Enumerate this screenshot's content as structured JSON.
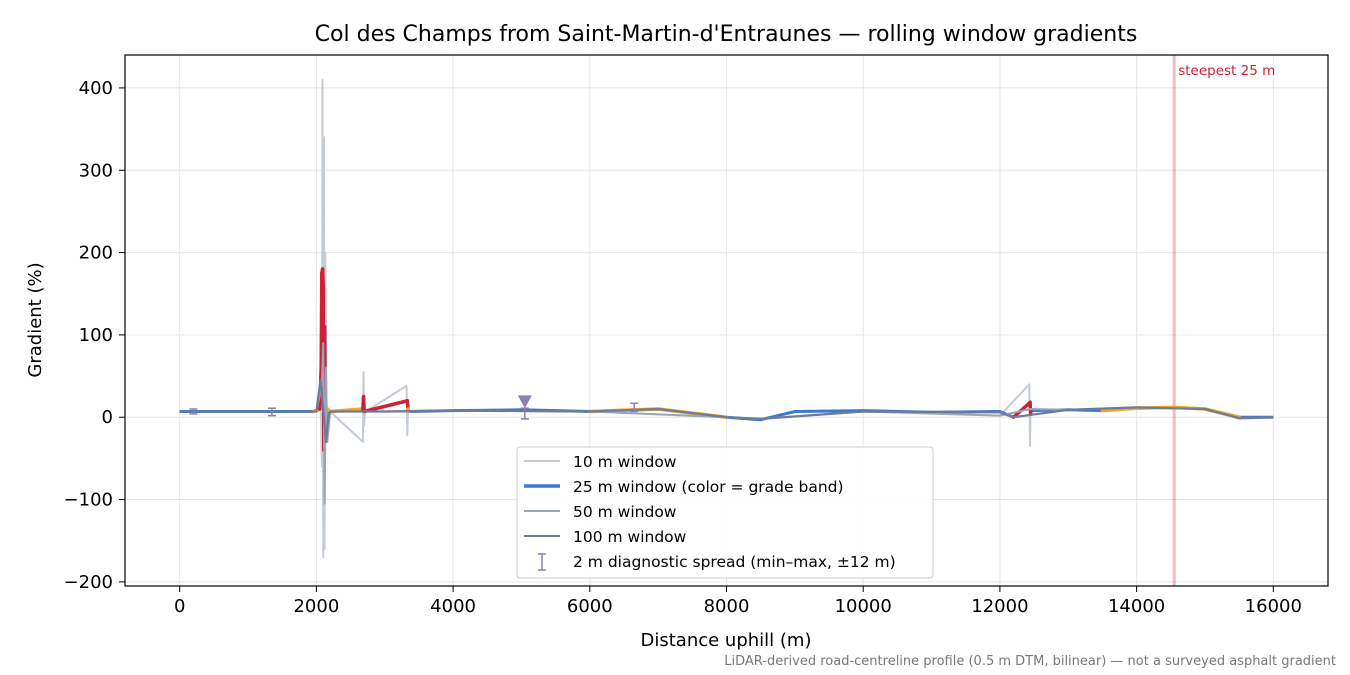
{
  "chart_data": {
    "type": "line",
    "title": "Col des Champs from Saint-Martin-d'Entraunes — rolling window gradients",
    "xlabel": "Distance uphill (m)",
    "ylabel": "Gradient (%)",
    "xlim": [
      -800,
      16800
    ],
    "ylim": [
      -205,
      440
    ],
    "xticks": [
      0,
      2000,
      4000,
      6000,
      8000,
      10000,
      12000,
      14000,
      16000
    ],
    "xtick_labels": [
      "0",
      "2000",
      "4000",
      "6000",
      "8000",
      "10000",
      "12000",
      "14000",
      "16000"
    ],
    "yticks": [
      -200,
      -100,
      0,
      100,
      200,
      300,
      400
    ],
    "ytick_labels": [
      "−200",
      "−100",
      "0",
      "100",
      "200",
      "300",
      "400"
    ],
    "grid": true,
    "legend_placement": "lower-center",
    "footnote": "LiDAR-derived road-centreline profile (0.5 m DTM, bilinear) — not a surveyed asphalt gradient",
    "annotations": [
      {
        "kind": "vertical-line",
        "x": 14550,
        "text": "steepest 25 m",
        "color": "#cc2233"
      },
      {
        "kind": "triangle-marker",
        "x": 5050,
        "y": 18,
        "color": "#8e7fae"
      }
    ],
    "series": [
      {
        "name": "10 m window",
        "color": "#c5ccd6",
        "x": [
          0,
          1000,
          1900,
          2040,
          2060,
          2080,
          2090,
          2100,
          2110,
          2120,
          2130,
          2150,
          2200,
          2680,
          2690,
          2700,
          2710,
          2720,
          3320,
          3330,
          3340,
          3350,
          4000,
          6000,
          8000,
          8500,
          10000,
          12000,
          12430,
          12440,
          12450,
          12460,
          13000,
          14000,
          15000,
          15500,
          16000
        ],
        "values": [
          7,
          7,
          7,
          8,
          45,
          -60,
          410,
          -170,
          340,
          -160,
          200,
          -20,
          7,
          -30,
          55,
          -10,
          5,
          7,
          38,
          -22,
          10,
          7,
          8,
          7,
          0,
          -2,
          7,
          2,
          40,
          -35,
          20,
          8,
          9,
          12,
          10,
          -2,
          0
        ]
      },
      {
        "name": "25 m window (color = grade band)",
        "color": "#3a78d8",
        "x": [
          0,
          1000,
          1950,
          2050,
          2070,
          2080,
          2090,
          2100,
          2110,
          2120,
          2130,
          2160,
          2200,
          2680,
          2690,
          2700,
          3330,
          3340,
          3350,
          4000,
          5000,
          6000,
          7000,
          8000,
          8500,
          9000,
          10000,
          11000,
          12000,
          12200,
          12440,
          12450,
          12460,
          13000,
          13500,
          14000,
          14550,
          15000,
          15500,
          16000
        ],
        "values": [
          7,
          7,
          7,
          10,
          60,
          175,
          180,
          160,
          -40,
          110,
          -20,
          10,
          7,
          10,
          25,
          7,
          20,
          10,
          7,
          8,
          9,
          7,
          10,
          0,
          -3,
          7,
          8,
          6,
          7,
          0,
          18,
          5,
          8,
          9,
          8,
          11,
          12,
          10,
          0,
          0
        ],
        "bands": [
          {
            "range": "0–5",
            "color": "#9bbbe0"
          },
          {
            "range": "5–10",
            "color": "#3a78d8"
          },
          {
            "range": "10–15",
            "color": "#f5a623"
          },
          {
            "range": "15+",
            "color": "#cc2233"
          }
        ]
      },
      {
        "name": "50 m window",
        "color": "#9aa5b8",
        "x": [
          0,
          1000,
          2000,
          2080,
          2100,
          2120,
          2140,
          2160,
          2200,
          3000,
          4000,
          6000,
          8000,
          8500,
          10000,
          12000,
          12450,
          13000,
          14000,
          15000,
          15500,
          16000
        ],
        "values": [
          7,
          7,
          7,
          40,
          90,
          -105,
          60,
          -30,
          7,
          7,
          8,
          7,
          0,
          -2,
          7,
          2,
          10,
          9,
          12,
          10,
          -1,
          0
        ]
      },
      {
        "name": "100 m window",
        "color": "#6e7b94",
        "x": [
          0,
          1000,
          2000,
          2060,
          2100,
          2140,
          2180,
          2220,
          3000,
          4000,
          6000,
          7000,
          8000,
          8500,
          10000,
          12000,
          12200,
          13000,
          14000,
          15000,
          15500,
          16000
        ],
        "values": [
          7,
          7,
          7,
          45,
          10,
          -30,
          5,
          7,
          7,
          8,
          7,
          10,
          0,
          -2,
          7,
          6,
          0,
          9,
          12,
          10,
          -1,
          0
        ]
      },
      {
        "name": "2 m diagnostic spread (min–max, ±12 m)",
        "color": "#8e7fae",
        "type": "errorbar",
        "x": [
          200,
          1350,
          5050,
          6650
        ],
        "values": [
          7,
          7,
          5,
          12
        ],
        "low": [
          4,
          2,
          -2,
          7
        ],
        "high": [
          10,
          11,
          11,
          17
        ]
      }
    ]
  }
}
